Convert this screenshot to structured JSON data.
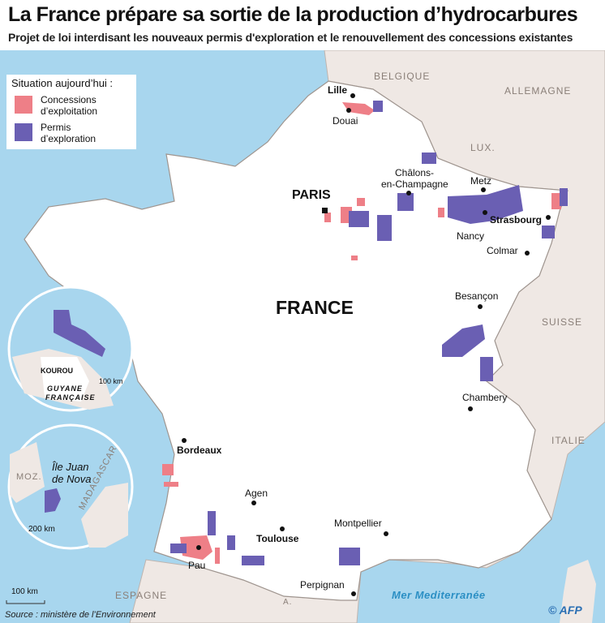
{
  "title": "La France prépare sa sortie de la production d’hydrocarbures",
  "subtitle": "Projet de loi interdisant les nouveaux permis d'exploration et le renouvellement des concessions existantes",
  "legend": {
    "title": "Situation aujourd’hui :",
    "items": [
      {
        "label_1": "Concessions",
        "label_2": "d’exploitation",
        "color": "#ee7f87"
      },
      {
        "label_1": "Permis",
        "label_2": "d’exploration",
        "color": "#6a5fb3"
      }
    ]
  },
  "colors": {
    "sea": "#a8d6ee",
    "land_neighbors": "#efe8e4",
    "france": "#ffffff",
    "concession": "#ee7f87",
    "permis": "#6a5fb3"
  },
  "countries": {
    "belgique": "BELGIQUE",
    "allemagne": "ALLEMAGNE",
    "lux": "LUX.",
    "suisse": "SUISSE",
    "italie": "ITALIE",
    "espagne": "ESPAGNE",
    "andorre": "A.",
    "france": "FRANCE"
  },
  "sea": "Mer Mediterranée",
  "cities": {
    "lille": "Lille",
    "douai": "Douai",
    "paris": "PARIS",
    "chalons_1": "Châlons-",
    "chalons_2": "en-Champagne",
    "metz": "Metz",
    "nancy": "Nancy",
    "strasbourg": "Strasbourg",
    "colmar": "Colmar",
    "besancon": "Besançon",
    "chambery": "Chambery",
    "bordeaux": "Bordeaux",
    "agen": "Agen",
    "toulouse": "Toulouse",
    "pau": "Pau",
    "montpellier": "Montpellier",
    "perpignan": "Perpignan"
  },
  "insets": {
    "guyane": {
      "city": "KOUROU",
      "name_1": "GUYANE",
      "name_2": "FRANÇAISE",
      "scale": "100 km"
    },
    "juan_de_nova": {
      "name_1": "Île Juan",
      "name_2": "de Nova",
      "moz": "MOZ.",
      "madagascar": "MADAGASCAR",
      "scale": "200 km"
    }
  },
  "scale": "100 km",
  "source": "Source : ministère de l’Environnement",
  "credit": "© AFP"
}
